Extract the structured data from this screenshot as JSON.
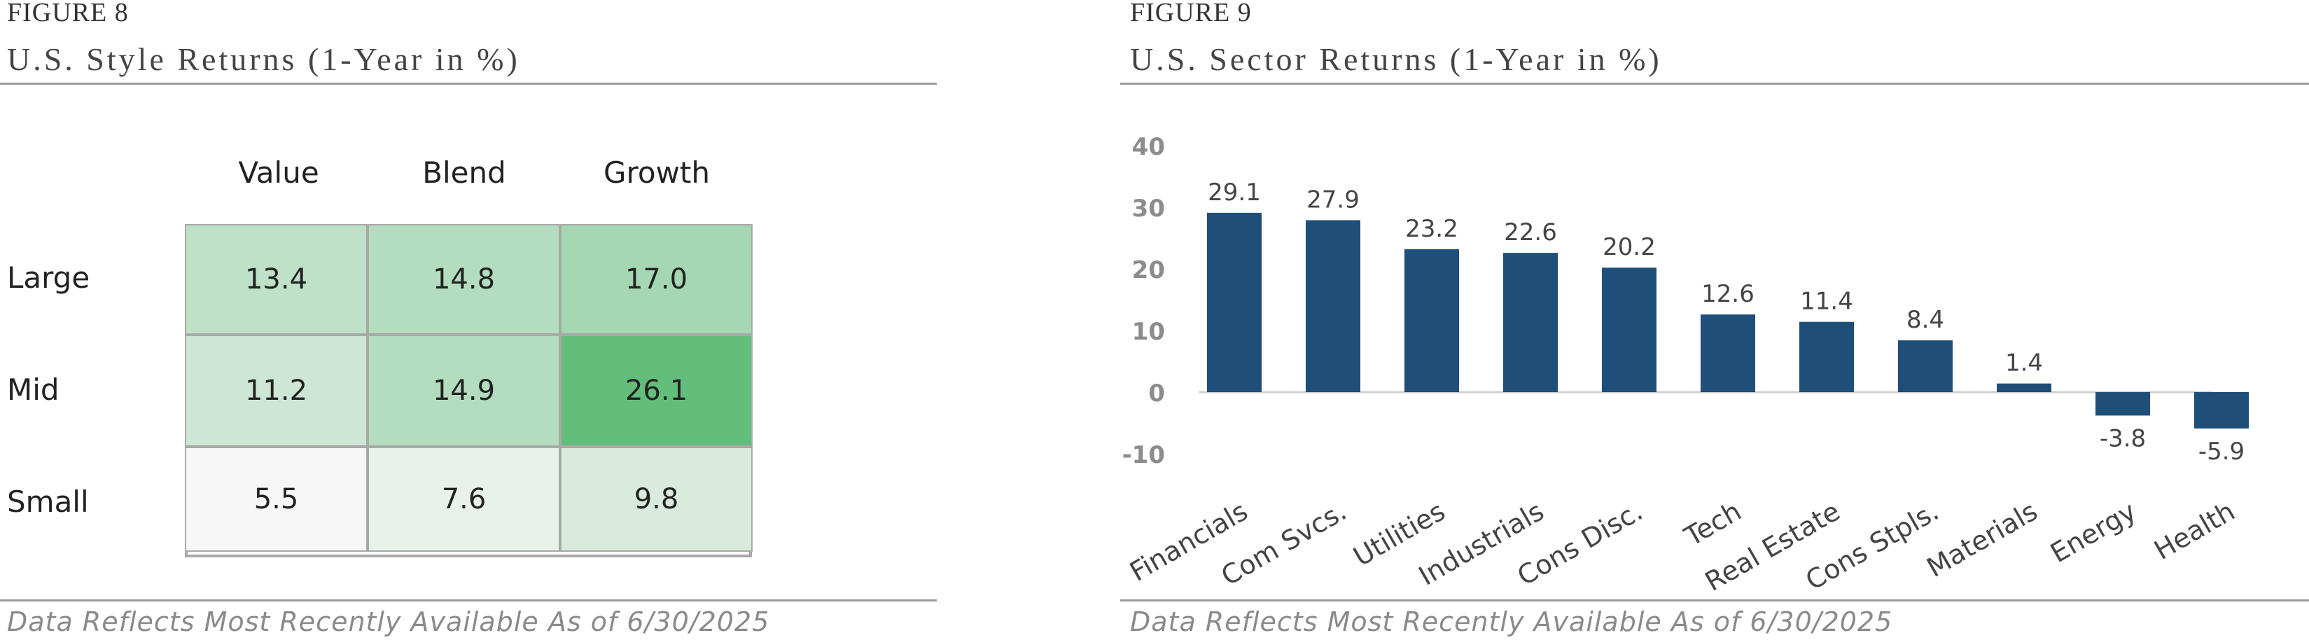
{
  "left": {
    "figure_label": "FIGURE 8",
    "title": "U.S. Style Returns (1-Year in %)",
    "note": "Data Reflects Most Recently Available As of 6/30/2025"
  },
  "right": {
    "figure_label": "FIGURE 9",
    "title": "U.S. Sector Returns (1-Year in %)",
    "note": "Data Reflects Most Recently Available As of 6/30/2025"
  },
  "chart_data": [
    {
      "type": "heatmap",
      "title": "U.S. Style Returns (1-Year in %)",
      "columns": [
        "Value",
        "Blend",
        "Growth"
      ],
      "rows": [
        "Large",
        "Mid",
        "Small"
      ],
      "values": [
        [
          13.4,
          14.8,
          17.0
        ],
        [
          11.2,
          14.9,
          26.1
        ],
        [
          5.5,
          7.6,
          9.8
        ]
      ],
      "labels": [
        [
          "13.4",
          "14.8",
          "17.0"
        ],
        [
          "11.2",
          "14.9",
          "26.1"
        ],
        [
          "5.5",
          "7.6",
          "9.8"
        ]
      ],
      "color_low": "#f7f7f7",
      "color_high": "#63be7b"
    },
    {
      "type": "bar",
      "title": "U.S. Sector Returns (1-Year in %)",
      "categories": [
        "Financials",
        "Com Svcs.",
        "Utilities",
        "Industrials",
        "Cons Disc.",
        "Tech",
        "Real Estate",
        "Cons Stpls.",
        "Materials",
        "Energy",
        "Health"
      ],
      "values": [
        29.1,
        27.9,
        23.2,
        22.6,
        20.2,
        12.6,
        11.4,
        8.4,
        1.4,
        -3.8,
        -5.9
      ],
      "value_labels": [
        "29.1",
        "27.9",
        "23.2",
        "22.6",
        "20.2",
        "12.6",
        "11.4",
        "8.4",
        "1.4",
        "-3.8",
        "-5.9"
      ],
      "yticks": [
        40,
        30,
        20,
        10,
        0,
        -10
      ],
      "ytick_labels": [
        "40",
        "30",
        "20",
        "10",
        "0",
        "-10"
      ],
      "ylim": [
        -10,
        40
      ],
      "bar_color": "#1f4e79",
      "grid": false
    }
  ]
}
